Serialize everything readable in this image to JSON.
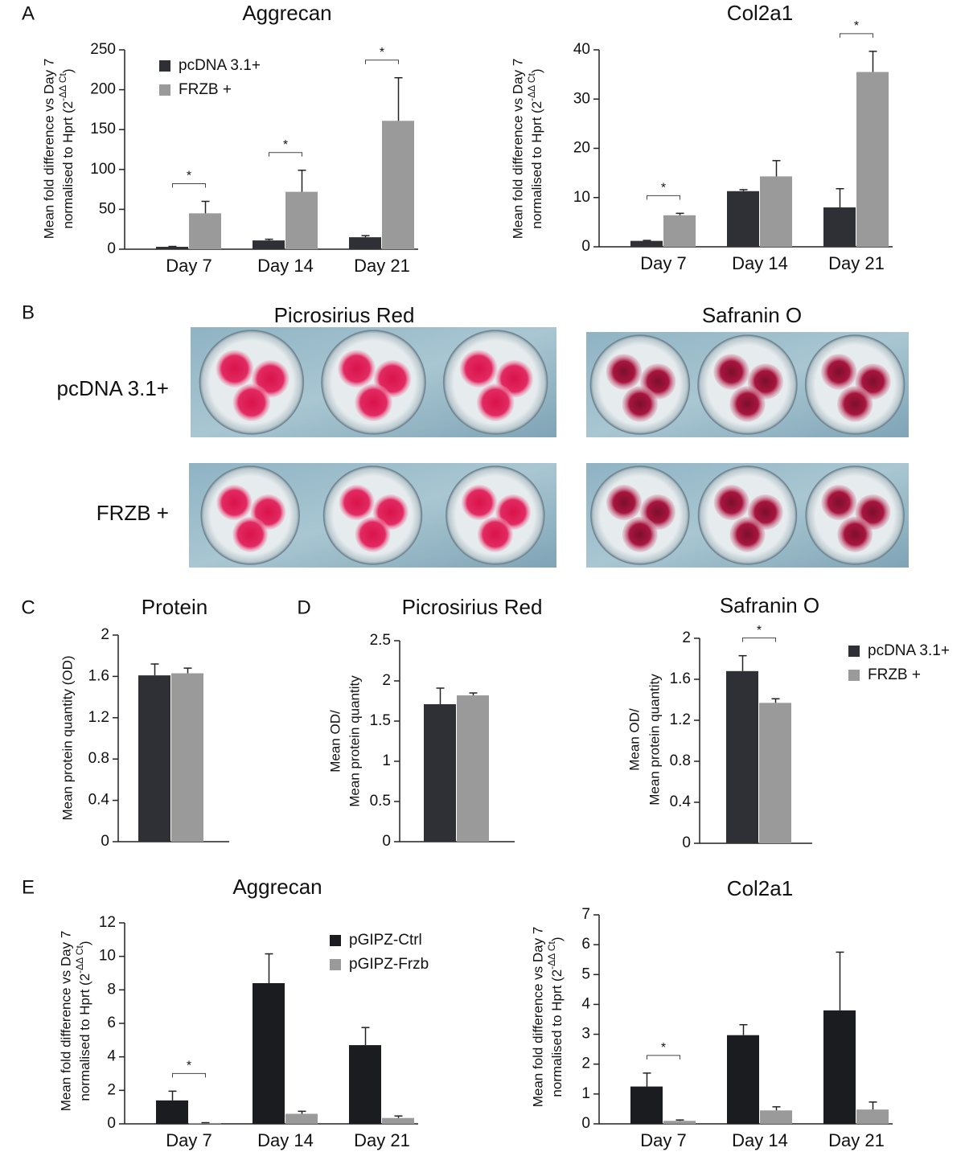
{
  "panel_labels": [
    "A",
    "B",
    "C",
    "D",
    "E"
  ],
  "stain_panel": {
    "columns": [
      "Picrosirius Red",
      "Safranin O"
    ],
    "rows": [
      "pcDNA 3.1+",
      "FRZB +"
    ]
  },
  "chart_data": [
    {
      "type": "bar",
      "title": "Aggrecan",
      "categories": [
        "Day 7",
        "Day 14",
        "Day 21"
      ],
      "y_label": [
        "Mean fold difference vs Day 7",
        [
          "normalised to Hprt (2",
          "-ΔΔ Ct",
          ")"
        ]
      ],
      "series": [
        {
          "name": "pcDNA 3.1+",
          "color": "#2e3035",
          "values": [
            3,
            11,
            15
          ],
          "errors": [
            0.5,
            1.5,
            2
          ]
        },
        {
          "name": "FRZB +",
          "color": "#9a9a9a",
          "values": [
            45,
            72,
            161
          ],
          "errors": [
            15,
            27,
            54
          ]
        }
      ],
      "significance": [
        "*",
        "*",
        "*"
      ],
      "ylim": [
        0,
        250
      ],
      "yticks": [
        0,
        50,
        100,
        150,
        200,
        250
      ],
      "legend": "upper left"
    },
    {
      "type": "bar",
      "title": "Col2a1",
      "categories": [
        "Day 7",
        "Day 14",
        "Day 21"
      ],
      "y_label": [
        "Mean fold difference vs Day 7",
        [
          "normalised to Hprt (2",
          "-ΔΔ Ct",
          ")"
        ]
      ],
      "series": [
        {
          "color": "#2e3035",
          "values": [
            1.2,
            11.3,
            8
          ],
          "errors": [
            0.1,
            0.3,
            3.8
          ]
        },
        {
          "color": "#9a9a9a",
          "values": [
            6.4,
            14.3,
            35.5
          ],
          "errors": [
            0.4,
            3.2,
            4.2
          ]
        }
      ],
      "significance": [
        "*",
        null,
        "*"
      ],
      "ylim": [
        0,
        40
      ],
      "yticks": [
        0,
        10,
        20,
        30,
        40
      ]
    },
    {
      "type": "bar",
      "title": "Protein",
      "categories": [
        null
      ],
      "y_label": [
        "Mean protein quantity (OD)"
      ],
      "series": [
        {
          "color": "#2e3035",
          "values": [
            1.61
          ],
          "errors": [
            0.11
          ]
        },
        {
          "color": "#9a9a9a",
          "values": [
            1.63
          ],
          "errors": [
            0.05
          ]
        }
      ],
      "ylim": [
        0,
        2
      ],
      "yticks": [
        0,
        0.4,
        0.8,
        1.2,
        1.6,
        2
      ]
    },
    {
      "type": "bar",
      "title": "Picrosirius Red",
      "categories": [
        null
      ],
      "y_label": [
        "Mean OD/",
        "Mean protein quantity"
      ],
      "series": [
        {
          "color": "#2e3035",
          "values": [
            1.71
          ],
          "errors": [
            0.2
          ]
        },
        {
          "color": "#9a9a9a",
          "values": [
            1.82
          ],
          "errors": [
            0.03
          ]
        }
      ],
      "ylim": [
        0,
        2.5
      ],
      "yticks": [
        0,
        0.5,
        1,
        1.5,
        2,
        2.5
      ]
    },
    {
      "type": "bar",
      "title": "Safranin O",
      "categories": [
        null
      ],
      "y_label": [
        "Mean OD/",
        "Mean protein quantity"
      ],
      "series": [
        {
          "name": "pcDNA 3.1+",
          "color": "#2e3035",
          "values": [
            1.68
          ],
          "errors": [
            0.15
          ]
        },
        {
          "name": "FRZB +",
          "color": "#9a9a9a",
          "values": [
            1.37
          ],
          "errors": [
            0.04
          ]
        }
      ],
      "significance": [
        "*"
      ],
      "ylim": [
        0,
        2
      ],
      "yticks": [
        0,
        0.4,
        0.8,
        1.2,
        1.6,
        2
      ],
      "legend": "right"
    },
    {
      "type": "bar",
      "title": "Aggrecan",
      "categories": [
        "Day 7",
        "Day 14",
        "Day 21"
      ],
      "y_label": [
        "Mean fold difference vs Day 7",
        [
          "normalised to Hprt (2",
          "-ΔΔ Ct",
          ")"
        ]
      ],
      "series": [
        {
          "name": "pGIPZ-Ctrl",
          "color": "#1b1c1f",
          "values": [
            1.4,
            8.4,
            4.7
          ],
          "errors": [
            0.55,
            1.75,
            1.05
          ]
        },
        {
          "name": "pGIPZ-Frzb",
          "color": "#9a9a9a",
          "values": [
            0.05,
            0.6,
            0.35
          ],
          "errors": [
            0.02,
            0.15,
            0.12
          ]
        }
      ],
      "significance": [
        "*",
        null,
        null
      ],
      "ylim": [
        0,
        12
      ],
      "yticks": [
        0,
        2,
        4,
        6,
        8,
        10,
        12
      ],
      "legend": "upper right"
    },
    {
      "type": "bar",
      "title": "Col2a1",
      "categories": [
        "Day 7",
        "Day 14",
        "Day 21"
      ],
      "y_label": [
        "Mean fold difference vs Day 7",
        [
          "normalised to Hprt (2",
          "-ΔΔ Ct",
          ")"
        ]
      ],
      "series": [
        {
          "color": "#1b1c1f",
          "values": [
            1.25,
            2.97,
            3.8
          ],
          "errors": [
            0.45,
            0.35,
            1.95
          ]
        },
        {
          "color": "#9a9a9a",
          "values": [
            0.1,
            0.45,
            0.48
          ],
          "errors": [
            0.03,
            0.12,
            0.25
          ]
        }
      ],
      "significance": [
        "*",
        null,
        null
      ],
      "ylim": [
        0,
        7
      ],
      "yticks": [
        0,
        1,
        2,
        3,
        4,
        5,
        6,
        7
      ]
    }
  ]
}
